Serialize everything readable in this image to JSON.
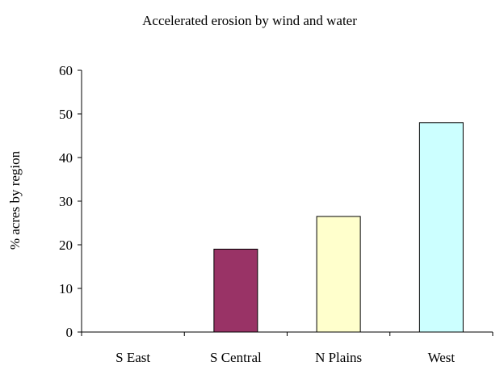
{
  "chart_data": {
    "type": "bar",
    "title": "Accelerated erosion by wind and water",
    "xlabel": "",
    "ylabel": "% acres by region",
    "categories": [
      "S East",
      "S Central",
      "N Plains",
      "West"
    ],
    "values": [
      0,
      19,
      26.5,
      48
    ],
    "ylim": [
      0,
      60
    ],
    "yticks": [
      0,
      10,
      20,
      30,
      40,
      50,
      60
    ],
    "grid": false,
    "legend": "none",
    "bar_colors": [
      "#993366",
      "#993366",
      "#FFFFCC",
      "#CCFFFF"
    ]
  }
}
